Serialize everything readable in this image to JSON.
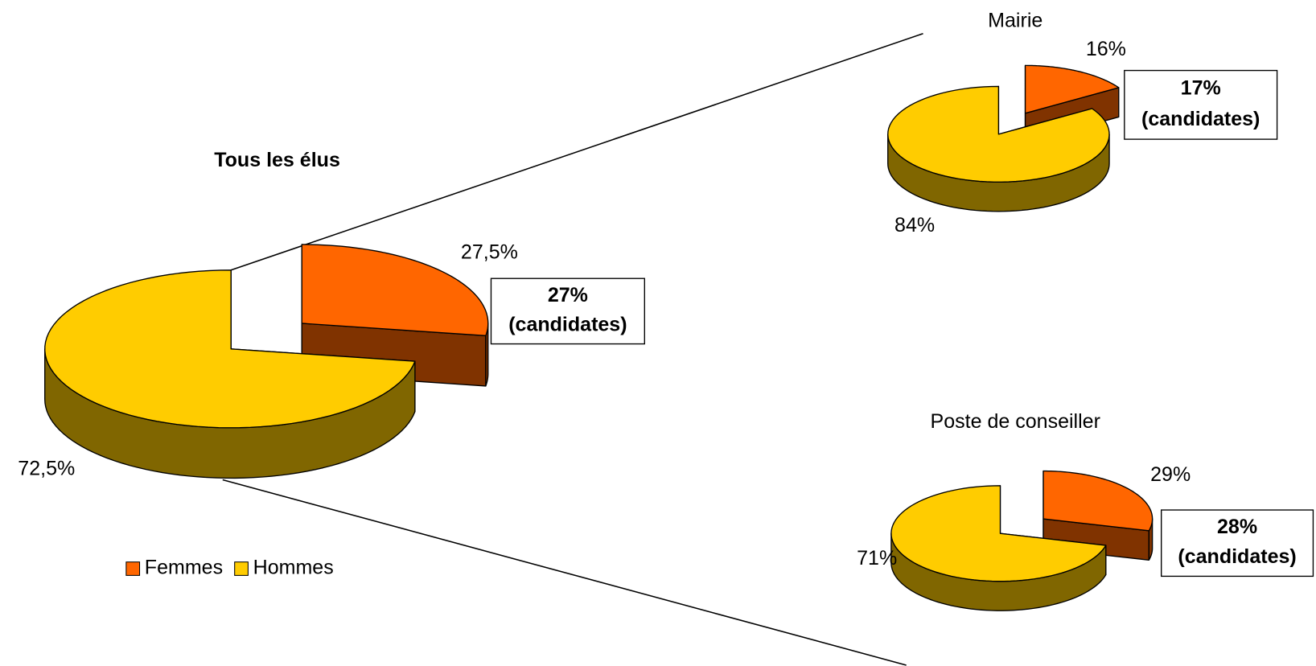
{
  "chart_data": [
    {
      "type": "pie",
      "title": "Tous les élus",
      "categories": [
        "Femmes",
        "Hommes"
      ],
      "values": [
        27.5,
        72.5
      ],
      "value_labels": [
        "27,5%",
        "72,5%"
      ],
      "colors": [
        "#ff6600",
        "#ffcc00"
      ],
      "annotation": [
        "27%",
        "(candidates)"
      ],
      "legend": "bottom-left"
    },
    {
      "type": "pie",
      "title": "Mairie",
      "categories": [
        "Femmes",
        "Hommes"
      ],
      "values": [
        16,
        84
      ],
      "value_labels": [
        "16%",
        "84%"
      ],
      "colors": [
        "#ff6600",
        "#ffcc00"
      ],
      "annotation": [
        "17%",
        "(candidates)"
      ]
    },
    {
      "type": "pie",
      "title": "Poste de conseiller",
      "categories": [
        "Femmes",
        "Hommes"
      ],
      "values": [
        29,
        71
      ],
      "value_labels": [
        "29%",
        "71%"
      ],
      "colors": [
        "#ff6600",
        "#ffcc00"
      ],
      "annotation": [
        "28%",
        "(candidates)"
      ]
    }
  ]
}
